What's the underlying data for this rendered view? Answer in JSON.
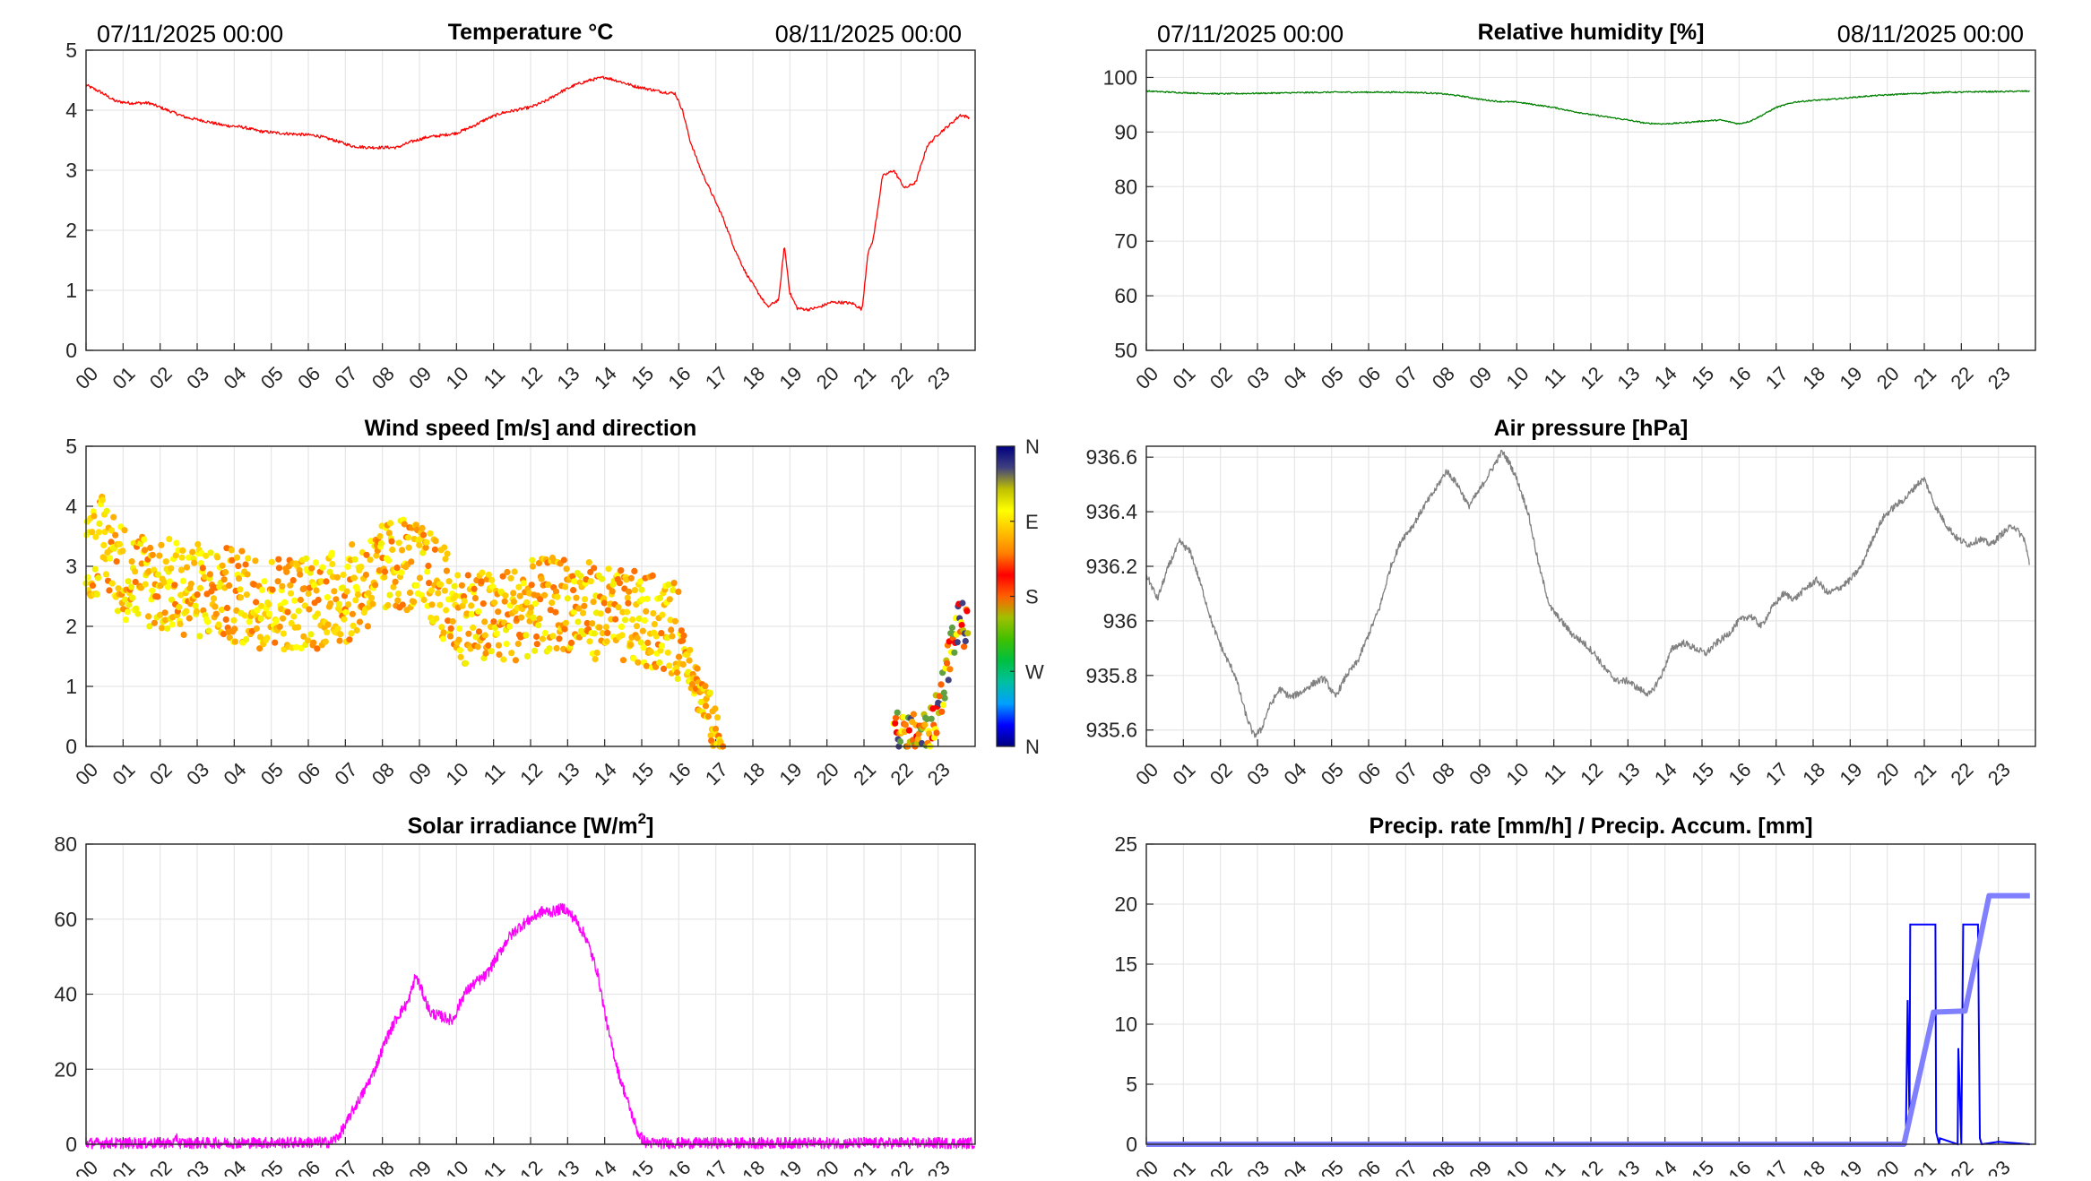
{
  "header": {
    "left_date": "07/11/2025 00:00",
    "right_date": "08/11/2025 00:00"
  },
  "hour_labels": [
    "00",
    "01",
    "02",
    "03",
    "04",
    "05",
    "06",
    "07",
    "08",
    "09",
    "10",
    "11",
    "12",
    "13",
    "14",
    "15",
    "16",
    "17",
    "18",
    "19",
    "20",
    "21",
    "22",
    "23"
  ],
  "colors": {
    "temperature": "#ff0000",
    "humidity": "#008000",
    "pressure": "#808080",
    "solar": "#ff00ff",
    "precip_rate": "#0000ff",
    "precip_accum": "#8080ff",
    "grid": "#e6e6e6"
  },
  "chart_data": [
    {
      "id": "temperature",
      "type": "line",
      "title": "Temperature °C",
      "xlabel": "",
      "ylabel": "",
      "xlim": [
        0,
        24
      ],
      "ylim": [
        0,
        5
      ],
      "yticks": [
        0,
        1,
        2,
        3,
        4,
        5
      ],
      "ytick_labels": [
        "0",
        "1",
        "2",
        "3",
        "4",
        "5"
      ],
      "series": [
        {
          "name": "Temperature",
          "color": "#ff0000",
          "x": [
            0,
            0.4,
            0.8,
            1.2,
            1.7,
            2.2,
            2.7,
            3.2,
            3.7,
            4.2,
            4.7,
            5.2,
            5.7,
            6.2,
            6.7,
            7.2,
            7.6,
            8.0,
            8.4,
            8.8,
            9.2,
            9.6,
            10.0,
            10.4,
            10.8,
            11.2,
            11.6,
            12.0,
            12.4,
            12.8,
            13.2,
            13.6,
            14.0,
            14.4,
            14.8,
            15.2,
            15.6,
            15.9,
            16.1,
            16.3,
            16.6,
            16.9,
            17.2,
            17.5,
            17.8,
            18.1,
            18.4,
            18.7,
            18.85,
            19.0,
            19.2,
            19.5,
            19.8,
            20.1,
            20.4,
            20.7,
            20.95,
            21.1,
            21.25,
            21.5,
            21.8,
            22.1,
            22.4,
            22.7,
            23.0,
            23.3,
            23.6,
            23.85
          ],
          "y": [
            4.42,
            4.3,
            4.15,
            4.12,
            4.12,
            4.0,
            3.88,
            3.82,
            3.75,
            3.72,
            3.65,
            3.62,
            3.6,
            3.58,
            3.5,
            3.4,
            3.38,
            3.38,
            3.38,
            3.48,
            3.55,
            3.58,
            3.62,
            3.72,
            3.85,
            3.95,
            4.0,
            4.05,
            4.15,
            4.3,
            4.42,
            4.5,
            4.55,
            4.48,
            4.4,
            4.35,
            4.3,
            4.28,
            4.0,
            3.5,
            3.0,
            2.6,
            2.2,
            1.7,
            1.3,
            1.0,
            0.72,
            0.85,
            1.75,
            0.95,
            0.7,
            0.68,
            0.72,
            0.8,
            0.8,
            0.78,
            0.68,
            1.6,
            1.85,
            2.9,
            3.0,
            2.7,
            2.8,
            3.4,
            3.6,
            3.75,
            3.92,
            3.88
          ]
        }
      ]
    },
    {
      "id": "humidity",
      "type": "line",
      "title": "Relative humidity [%]",
      "xlabel": "",
      "ylabel": "",
      "xlim": [
        0,
        24
      ],
      "ylim": [
        50,
        105
      ],
      "yticks": [
        50,
        60,
        70,
        80,
        90,
        100
      ],
      "ytick_labels": [
        "50",
        "60",
        "70",
        "80",
        "90",
        "100"
      ],
      "series": [
        {
          "name": "Relative humidity",
          "color": "#008000",
          "x": [
            0,
            1,
            2,
            3,
            4,
            5,
            6,
            7,
            7.5,
            8,
            8.5,
            9,
            9.5,
            10,
            10.5,
            11,
            11.5,
            12,
            12.5,
            13,
            13.5,
            14,
            14.5,
            15,
            15.5,
            16,
            16.3,
            16.6,
            17,
            17.5,
            18,
            18.5,
            19,
            19.5,
            20,
            20.5,
            21,
            21.5,
            22,
            22.5,
            23,
            23.85
          ],
          "y": [
            97.5,
            97.2,
            97.0,
            97.1,
            97.2,
            97.3,
            97.3,
            97.3,
            97.2,
            97.0,
            96.6,
            96.0,
            95.6,
            95.5,
            95.0,
            94.5,
            93.8,
            93.2,
            92.7,
            92.2,
            91.6,
            91.5,
            91.7,
            92.0,
            92.2,
            91.5,
            92.0,
            93.0,
            94.5,
            95.5,
            95.8,
            96.0,
            96.3,
            96.6,
            96.8,
            97.0,
            97.1,
            97.3,
            97.3,
            97.4,
            97.4,
            97.5
          ]
        }
      ]
    },
    {
      "id": "wind",
      "type": "scatter",
      "title": "Wind speed [m/s] and direction",
      "xlabel": "",
      "ylabel": "",
      "xlim": [
        0,
        24
      ],
      "ylim": [
        0,
        5
      ],
      "yticks": [
        0,
        1,
        2,
        3,
        4,
        5
      ],
      "ytick_labels": [
        "0",
        "1",
        "2",
        "3",
        "4",
        "5"
      ],
      "colorbar": {
        "labels": [
          "N",
          "W",
          "S",
          "E",
          "N"
        ],
        "colors": [
          "#000080",
          "#0000ff",
          "#00a0ff",
          "#00c0a0",
          "#00c040",
          "#40c000",
          "#a0c000",
          "#ff6000",
          "#ff0000",
          "#ff8000",
          "#ffc000",
          "#ffff00",
          "#c0c000",
          "#404080",
          "#000080"
        ]
      },
      "trend": {
        "x": [
          0,
          0.5,
          1,
          2,
          3,
          4,
          5,
          6,
          7,
          8,
          8.5,
          9,
          9.5,
          10,
          11,
          12,
          13,
          14,
          15,
          15.8,
          16.2,
          16.5,
          16.8,
          17.0,
          17.2
        ],
        "y": [
          3.2,
          3.4,
          2.9,
          2.7,
          2.6,
          2.5,
          2.4,
          2.4,
          2.5,
          2.9,
          3.1,
          2.9,
          2.7,
          2.2,
          2.1,
          2.3,
          2.4,
          2.2,
          2.1,
          2.0,
          1.6,
          1.0,
          0.6,
          0.2,
          0.0
        ]
      },
      "late_trend": {
        "x": [
          21.8,
          22.0,
          22.4,
          22.8,
          23.0,
          23.2,
          23.4,
          23.6,
          23.8
        ],
        "y": [
          0.4,
          0.2,
          0.2,
          0.3,
          0.6,
          1.2,
          1.8,
          2.1,
          1.9
        ]
      }
    },
    {
      "id": "pressure",
      "type": "line",
      "title": "Air pressure [hPa]",
      "xlabel": "",
      "ylabel": "",
      "xlim": [
        0,
        24
      ],
      "ylim": [
        935.54,
        936.64
      ],
      "yticks": [
        935.6,
        935.8,
        936.0,
        936.2,
        936.4,
        936.6
      ],
      "ytick_labels": [
        "935.6",
        "935.8",
        "936",
        "936.2",
        "936.4",
        "936.6"
      ],
      "series": [
        {
          "name": "Air pressure",
          "color": "#808080",
          "x": [
            0,
            0.3,
            0.6,
            0.9,
            1.2,
            1.5,
            1.8,
            2.1,
            2.4,
            2.7,
            2.9,
            3.1,
            3.3,
            3.6,
            3.9,
            4.2,
            4.5,
            4.8,
            5.1,
            5.4,
            5.7,
            6.0,
            6.3,
            6.6,
            6.9,
            7.2,
            7.5,
            7.8,
            8.1,
            8.4,
            8.7,
            9.0,
            9.3,
            9.6,
            9.8,
            10.0,
            10.3,
            10.6,
            10.9,
            11.2,
            11.5,
            11.8,
            12.1,
            12.4,
            12.7,
            13.0,
            13.3,
            13.6,
            13.9,
            14.2,
            14.5,
            14.8,
            15.1,
            15.4,
            15.7,
            16.0,
            16.3,
            16.6,
            16.9,
            17.2,
            17.5,
            17.8,
            18.1,
            18.4,
            18.7,
            19.0,
            19.3,
            19.6,
            19.9,
            20.2,
            20.5,
            20.8,
            21.0,
            21.3,
            21.6,
            21.9,
            22.2,
            22.5,
            22.8,
            23.1,
            23.4,
            23.7,
            23.85
          ],
          "y": [
            936.17,
            936.08,
            936.2,
            936.29,
            936.25,
            936.12,
            935.98,
            935.88,
            935.8,
            935.65,
            935.58,
            935.6,
            935.68,
            935.75,
            935.72,
            935.74,
            935.77,
            935.79,
            935.72,
            935.8,
            935.85,
            935.95,
            936.05,
            936.2,
            936.3,
            936.35,
            936.42,
            936.48,
            936.55,
            936.5,
            936.42,
            936.48,
            936.55,
            936.62,
            936.58,
            936.52,
            936.4,
            936.2,
            936.05,
            936.0,
            935.95,
            935.92,
            935.88,
            935.82,
            935.78,
            935.78,
            935.75,
            935.73,
            935.8,
            935.9,
            935.92,
            935.9,
            935.88,
            935.92,
            935.95,
            936.0,
            936.02,
            935.98,
            936.05,
            936.1,
            936.08,
            936.12,
            936.15,
            936.1,
            936.12,
            936.15,
            936.2,
            936.3,
            936.38,
            936.42,
            936.45,
            936.5,
            936.52,
            936.42,
            936.35,
            936.3,
            936.28,
            936.3,
            936.28,
            936.32,
            936.35,
            936.3,
            936.2
          ]
        }
      ]
    },
    {
      "id": "solar",
      "type": "line",
      "title": "Solar irradiance [W/m",
      "title_superscript": "2",
      "title_end": "]",
      "xlabel": "",
      "ylabel": "",
      "xlim": [
        0,
        24
      ],
      "ylim": [
        0,
        80
      ],
      "yticks": [
        0,
        20,
        40,
        60,
        80
      ],
      "ytick_labels": [
        "0",
        "20",
        "40",
        "60",
        "80"
      ],
      "series": [
        {
          "name": "Solar irradiance",
          "color": "#ff00ff",
          "x": [
            0,
            2.4,
            2.45,
            2.5,
            6.6,
            6.8,
            7.0,
            7.2,
            7.5,
            7.8,
            8.1,
            8.4,
            8.7,
            8.9,
            9.1,
            9.3,
            9.6,
            9.9,
            10.2,
            10.5,
            10.8,
            11.1,
            11.4,
            11.7,
            12.0,
            12.3,
            12.6,
            12.9,
            13.2,
            13.5,
            13.8,
            14.1,
            14.4,
            14.7,
            14.9,
            15.1,
            15.3,
            24
          ],
          "y": [
            0.3,
            0.3,
            2.5,
            0.3,
            0.5,
            2,
            5,
            9,
            14,
            20,
            28,
            34,
            38,
            45,
            40,
            35,
            34,
            33,
            40,
            43,
            45,
            50,
            55,
            58,
            60,
            62,
            62,
            63,
            60,
            55,
            46,
            30,
            18,
            9,
            3,
            0.5,
            0.3,
            0.3
          ]
        }
      ]
    },
    {
      "id": "precip",
      "type": "line",
      "title": "Precip. rate [mm/h] / Precip. Accum. [mm]",
      "xlabel": "",
      "ylabel": "",
      "xlim": [
        0,
        24
      ],
      "ylim": [
        0,
        25
      ],
      "yticks": [
        0,
        5,
        10,
        15,
        20,
        25
      ],
      "ytick_labels": [
        "0",
        "5",
        "10",
        "15",
        "20",
        "25"
      ],
      "series": [
        {
          "name": "Precip. rate",
          "color": "#0000ff",
          "x": [
            0,
            20.5,
            20.55,
            20.6,
            20.62,
            21.3,
            21.32,
            21.4,
            21.42,
            21.9,
            21.92,
            22.0,
            22.05,
            22.06,
            22.45,
            22.5,
            22.55,
            23.0,
            23.85
          ],
          "y": [
            0,
            0,
            12,
            2,
            18.3,
            18.3,
            1,
            0,
            0.5,
            0,
            8,
            0,
            18.3,
            18.3,
            18.3,
            0.5,
            0,
            0.2,
            0
          ]
        },
        {
          "name": "Precip. Accum.",
          "color": "#8080ff",
          "x": [
            0,
            20.45,
            21.25,
            22.1,
            22.75,
            23.85
          ],
          "y": [
            0,
            0,
            11,
            11.1,
            20.7,
            20.7
          ]
        }
      ]
    }
  ]
}
